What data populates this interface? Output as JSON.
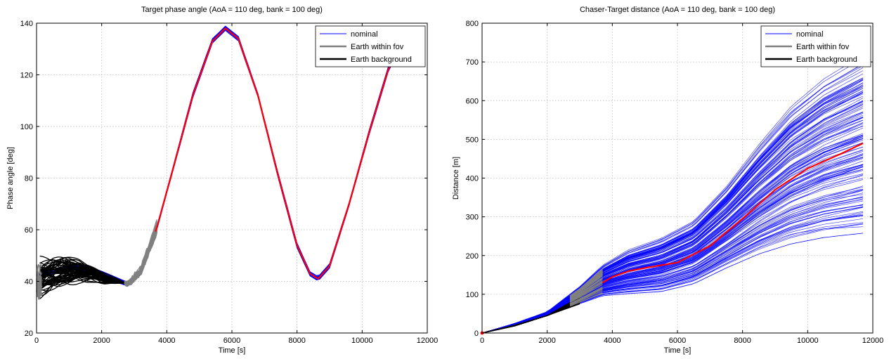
{
  "chart_data": [
    {
      "type": "line",
      "title": "Target phase angle (AoA = 110 deg, bank = 100 deg)",
      "xlabel": "Time [s]",
      "ylabel": "Phase angle [deg]",
      "xlim": [
        0,
        12000
      ],
      "ylim": [
        20,
        140
      ],
      "xticks": [
        0,
        2000,
        4000,
        6000,
        8000,
        10000,
        12000
      ],
      "yticks": [
        20,
        40,
        60,
        80,
        100,
        120,
        140
      ],
      "grid": true,
      "legend_position": "top-right",
      "legend": [
        {
          "label": "nominal",
          "color": "#0000ff"
        },
        {
          "label": "Earth within fov",
          "color": "#808080"
        },
        {
          "label": "Earth background",
          "color": "#000000"
        }
      ],
      "colors": {
        "monte_carlo": "#0000ff",
        "within_fov": "#808080",
        "background": "#000000",
        "mean": "#ff0000"
      },
      "series": [
        {
          "name": "nominal",
          "x": [
            0,
            600,
            1200,
            1800,
            2400,
            2800,
            3200,
            3700,
            4200,
            4800,
            5400,
            5800,
            6200,
            6800,
            7400,
            8000,
            8400,
            8650,
            9000,
            9600,
            10200,
            10800,
            11400,
            11600
          ],
          "y": [
            42,
            44,
            46,
            44,
            41,
            39,
            44,
            61,
            84,
            112,
            133,
            138,
            134,
            112,
            82,
            54,
            43,
            41,
            46,
            70,
            97,
            122,
            137,
            138
          ]
        },
        {
          "name": "Earth within fov",
          "x": [
            0,
            150,
            2700,
            3000,
            3300,
            3600
          ],
          "y": [
            40,
            40,
            40,
            44,
            52,
            61
          ]
        },
        {
          "name": "Earth background",
          "x": [
            100,
            500,
            900,
            1300,
            1700,
            2100,
            2500,
            2800
          ],
          "y": [
            41,
            43,
            44,
            44,
            43,
            41,
            40,
            39
          ]
        }
      ]
    },
    {
      "type": "line",
      "title": "Chaser-Target distance (AoA = 110 deg, bank = 100 deg)",
      "xlabel": "Time [s]",
      "ylabel": "Distance [m]",
      "xlim": [
        0,
        12000
      ],
      "ylim": [
        0,
        800
      ],
      "xticks": [
        0,
        2000,
        4000,
        6000,
        8000,
        10000,
        12000
      ],
      "yticks": [
        0,
        100,
        200,
        300,
        400,
        500,
        600,
        700,
        800
      ],
      "grid": true,
      "legend_position": "top-right",
      "legend": [
        {
          "label": "nominal",
          "color": "#0000ff"
        },
        {
          "label": "Earth within fov",
          "color": "#808080"
        },
        {
          "label": "Earth background",
          "color": "#000000"
        }
      ],
      "colors": {
        "monte_carlo": "#0000ff",
        "within_fov": "#808080",
        "background": "#000000",
        "mean": "#ff0000"
      },
      "series": [
        {
          "name": "nominal",
          "x": [
            3700,
            4000,
            4500,
            5000,
            6000,
            7000,
            8000,
            9000,
            10000,
            11000,
            11700
          ],
          "y": [
            130,
            145,
            160,
            168,
            182,
            225,
            295,
            370,
            425,
            462,
            490
          ]
        },
        {
          "name": "Earth within fov",
          "x": [
            2700,
            3000,
            3300,
            3700
          ],
          "y": [
            85,
            100,
            120,
            145
          ]
        },
        {
          "name": "Earth background",
          "x": [
            0,
            500,
            1000,
            1500,
            2000,
            2500,
            3000
          ],
          "y": [
            0,
            10,
            20,
            32,
            48,
            70,
            95
          ]
        }
      ],
      "envelope": {
        "x": [
          0,
          1000,
          2000,
          3000,
          3700,
          4500,
          5500,
          6500,
          7500,
          8500,
          9500,
          10500,
          11700
        ],
        "upper": [
          0,
          25,
          55,
          120,
          175,
          215,
          245,
          290,
          380,
          490,
          590,
          660,
          720
        ],
        "lower": [
          0,
          18,
          45,
          75,
          95,
          100,
          105,
          125,
          165,
          200,
          225,
          240,
          250
        ]
      }
    }
  ]
}
